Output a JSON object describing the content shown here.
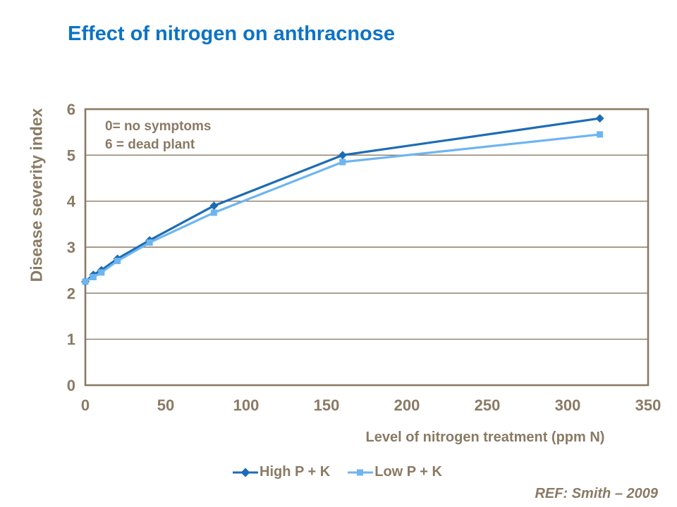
{
  "annotation": {
    "line1": "0= no symptoms",
    "line2": "6 = dead plant"
  },
  "reference": "REF: Smith – 2009",
  "colors": {
    "title": "#0d73c5",
    "axis_text": "#8a7a64",
    "grid": "#8a7a64",
    "frame": "#8a7a64",
    "high_series": "#1c6cb5",
    "low_series": "#6eb5f0",
    "background": "#ffffff"
  },
  "chart_data": {
    "type": "line",
    "title": "Effect of nitrogen on anthracnose",
    "xlabel": "Level of nitrogen treatment (ppm N)",
    "ylabel": "Disease severity index",
    "xlim": [
      0,
      350
    ],
    "ylim": [
      0,
      6
    ],
    "x_ticks": [
      0,
      50,
      100,
      150,
      200,
      250,
      300,
      350
    ],
    "y_ticks": [
      0,
      1,
      2,
      3,
      4,
      5,
      6
    ],
    "grid": "horizontal",
    "legend_position": "bottom",
    "x": [
      0,
      5,
      10,
      20,
      40,
      80,
      160,
      320
    ],
    "series": [
      {
        "name": "High P + K",
        "marker": "diamond",
        "color": "#1c6cb5",
        "values": [
          2.25,
          2.4,
          2.5,
          2.75,
          3.15,
          3.9,
          5.0,
          5.8
        ]
      },
      {
        "name": "Low P + K",
        "marker": "square",
        "color": "#6eb5f0",
        "values": [
          2.25,
          2.35,
          2.45,
          2.7,
          3.1,
          3.75,
          4.85,
          5.45
        ]
      }
    ]
  }
}
